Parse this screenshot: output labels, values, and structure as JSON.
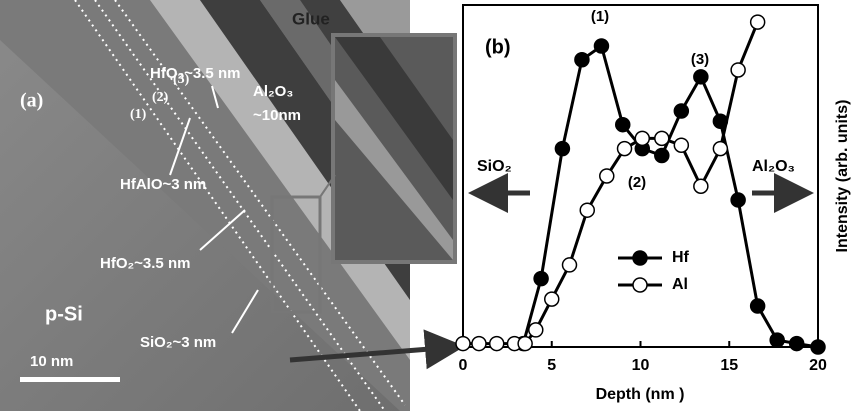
{
  "image_panel": {
    "labels": [
      "Glue",
      "HfO₂~3.5 nm",
      "(3)",
      "(2)",
      "(1)",
      "(a)",
      "Al₂O₃",
      "~10nm",
      "HfAlO~3 nm",
      "HfO₂~3.5 nm",
      "SiO₂~3 nm",
      "p-Si",
      "10 nm"
    ]
  },
  "chart_data": {
    "type": "line",
    "panel_label": "(b)",
    "x_label": "Depth (nm )",
    "y_label": "Intensity (arb. units)",
    "annotations": [
      "(1)",
      "(2)",
      "(3)",
      "SiO₂",
      "Al₂O₃"
    ],
    "xlim": [
      0,
      20
    ],
    "xticks": [
      0,
      5,
      10,
      15,
      20
    ],
    "ylim": [
      0,
      1
    ],
    "series": [
      {
        "name": "Hf",
        "color": "#000000",
        "x": [
          3.4,
          4.4,
          5.6,
          6.7,
          7.8,
          9.0,
          10.1,
          11.2,
          12.3,
          13.4,
          14.5,
          15.5,
          16.6,
          17.7,
          18.8,
          20.0
        ],
        "values": [
          0.01,
          0.2,
          0.58,
          0.84,
          0.88,
          0.65,
          0.58,
          0.56,
          0.69,
          0.79,
          0.66,
          0.43,
          0.12,
          0.02,
          0.01,
          0.0
        ]
      },
      {
        "name": "Al",
        "color": "#ffffff",
        "x": [
          0,
          0.9,
          1.9,
          2.9,
          3.5,
          4.1,
          5.0,
          6.0,
          7.0,
          8.1,
          9.1,
          10.1,
          11.2,
          12.3,
          13.4,
          14.5,
          15.5,
          16.6
        ],
        "values": [
          0.01,
          0.01,
          0.01,
          0.01,
          0.01,
          0.05,
          0.14,
          0.24,
          0.4,
          0.5,
          0.58,
          0.61,
          0.61,
          0.59,
          0.47,
          0.58,
          0.81,
          0.95
        ]
      }
    ]
  }
}
